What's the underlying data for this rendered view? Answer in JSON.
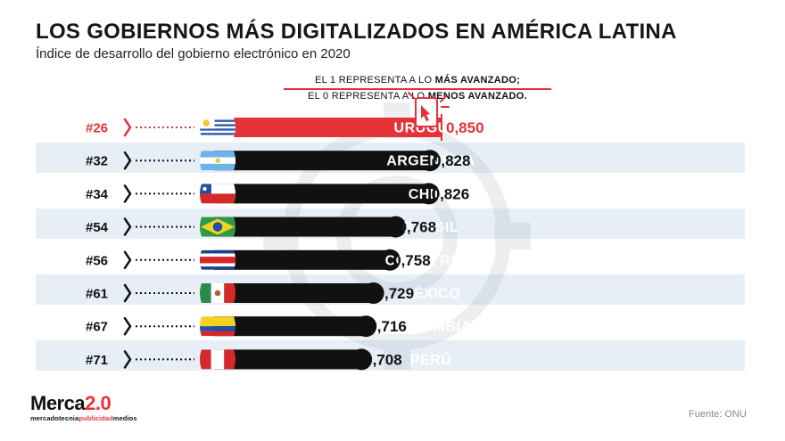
{
  "title": "LOS GOBIERNOS MÁS DIGITALIZADOS EN AMÉRICA LATINA",
  "subtitle": "Índice de desarrollo del gobierno electrónico en 2020",
  "note": {
    "line1_prefix": "EL 1 REPRESENTA A LO ",
    "line1_bold": "MÁS AVANZADO;",
    "line2_prefix": "EL 0 REPRESENTA A LO ",
    "line2_bold": "MENOS AVANZADO."
  },
  "logo": {
    "main_a": "Merca",
    "main_b": "2.0",
    "sub_a": "mercadotecnia",
    "sub_b": "publicidad",
    "sub_c": "medios"
  },
  "source": "Fuente: ONU",
  "colors": {
    "highlight": "#e53238",
    "bar": "#111111",
    "band": "#e7eef6"
  },
  "icons": [
    "tablet-cursor-icon"
  ],
  "chart_data": {
    "type": "bar",
    "orientation": "horizontal",
    "categories": [
      "URUGUAY",
      "ARGENTINA",
      "CHILE",
      "BRASIL",
      "COSTA RICA",
      "MÉXICO",
      "COLOMBIA",
      "PERÚ"
    ],
    "ranks": [
      "#26",
      "#32",
      "#34",
      "#54",
      "#56",
      "#61",
      "#67",
      "#71"
    ],
    "values": [
      0.85,
      0.828,
      0.826,
      0.768,
      0.758,
      0.729,
      0.716,
      0.708
    ],
    "value_labels": [
      "0,850",
      "0,828",
      "0,826",
      "0,768",
      "0,758",
      "0,729",
      "0,716",
      "0,708"
    ],
    "flags": [
      "uruguay-flag",
      "argentina-flag",
      "chile-flag",
      "brazil-flag",
      "costa-rica-flag",
      "mexico-flag",
      "colombia-flag",
      "peru-flag"
    ],
    "highlighted": "URUGUAY",
    "title": "LOS GOBIERNOS MÁS DIGITALIZADOS EN AMÉRICA LATINA"
  }
}
